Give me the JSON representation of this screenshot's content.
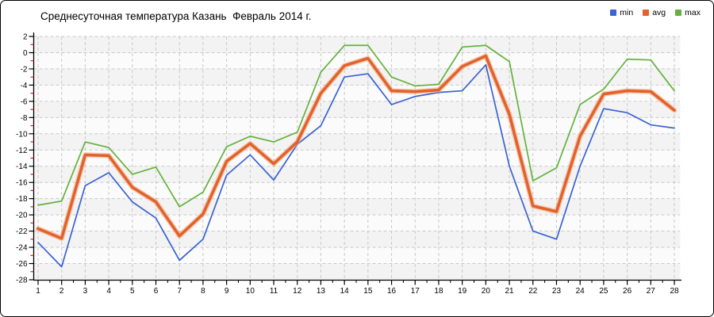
{
  "chart_data": {
    "type": "line",
    "title": "Среднесуточная температура Казань  Февраль 2014 г.",
    "xlabel": "",
    "ylabel": "",
    "x": [
      1,
      2,
      3,
      4,
      5,
      6,
      7,
      8,
      9,
      10,
      11,
      12,
      13,
      14,
      15,
      16,
      17,
      18,
      19,
      20,
      21,
      22,
      23,
      24,
      25,
      26,
      27,
      28
    ],
    "series": [
      {
        "name": "min",
        "color": "#3a62d2",
        "values": [
          -23.4,
          -26.4,
          -16.4,
          -14.8,
          -18.4,
          -20.4,
          -25.6,
          -23.0,
          -15.1,
          -12.6,
          -15.7,
          -11.3,
          -9.0,
          -3.0,
          -2.6,
          -6.4,
          -5.4,
          -4.9,
          -4.7,
          -1.5,
          -14.0,
          -22.0,
          -23.0,
          -14.0,
          -6.9,
          -7.4,
          -8.9,
          -9.3
        ]
      },
      {
        "name": "avg",
        "color": "#e2622b",
        "values": [
          -21.7,
          -22.9,
          -12.6,
          -12.7,
          -16.6,
          -18.4,
          -22.6,
          -19.9,
          -13.4,
          -11.2,
          -13.7,
          -11.0,
          -5.0,
          -1.6,
          -0.7,
          -4.7,
          -4.8,
          -4.6,
          -1.7,
          -0.4,
          -7.6,
          -18.9,
          -19.6,
          -10.3,
          -5.1,
          -4.7,
          -4.8,
          -7.1
        ]
      },
      {
        "name": "max",
        "color": "#64b23d",
        "values": [
          -18.8,
          -18.3,
          -11.0,
          -11.7,
          -15.0,
          -14.1,
          -19.0,
          -17.2,
          -11.6,
          -10.3,
          -11.0,
          -9.8,
          -2.4,
          0.9,
          0.9,
          -3.0,
          -4.1,
          -3.9,
          0.7,
          0.9,
          -1.1,
          -15.8,
          -14.2,
          -6.4,
          -4.5,
          -0.8,
          -0.9,
          -4.7
        ]
      }
    ],
    "ylim": [
      -28,
      2
    ],
    "ytick_step": 2,
    "grid": "dashed",
    "legend_position": "top-right",
    "minor_ytick_color": "#cc2222"
  }
}
